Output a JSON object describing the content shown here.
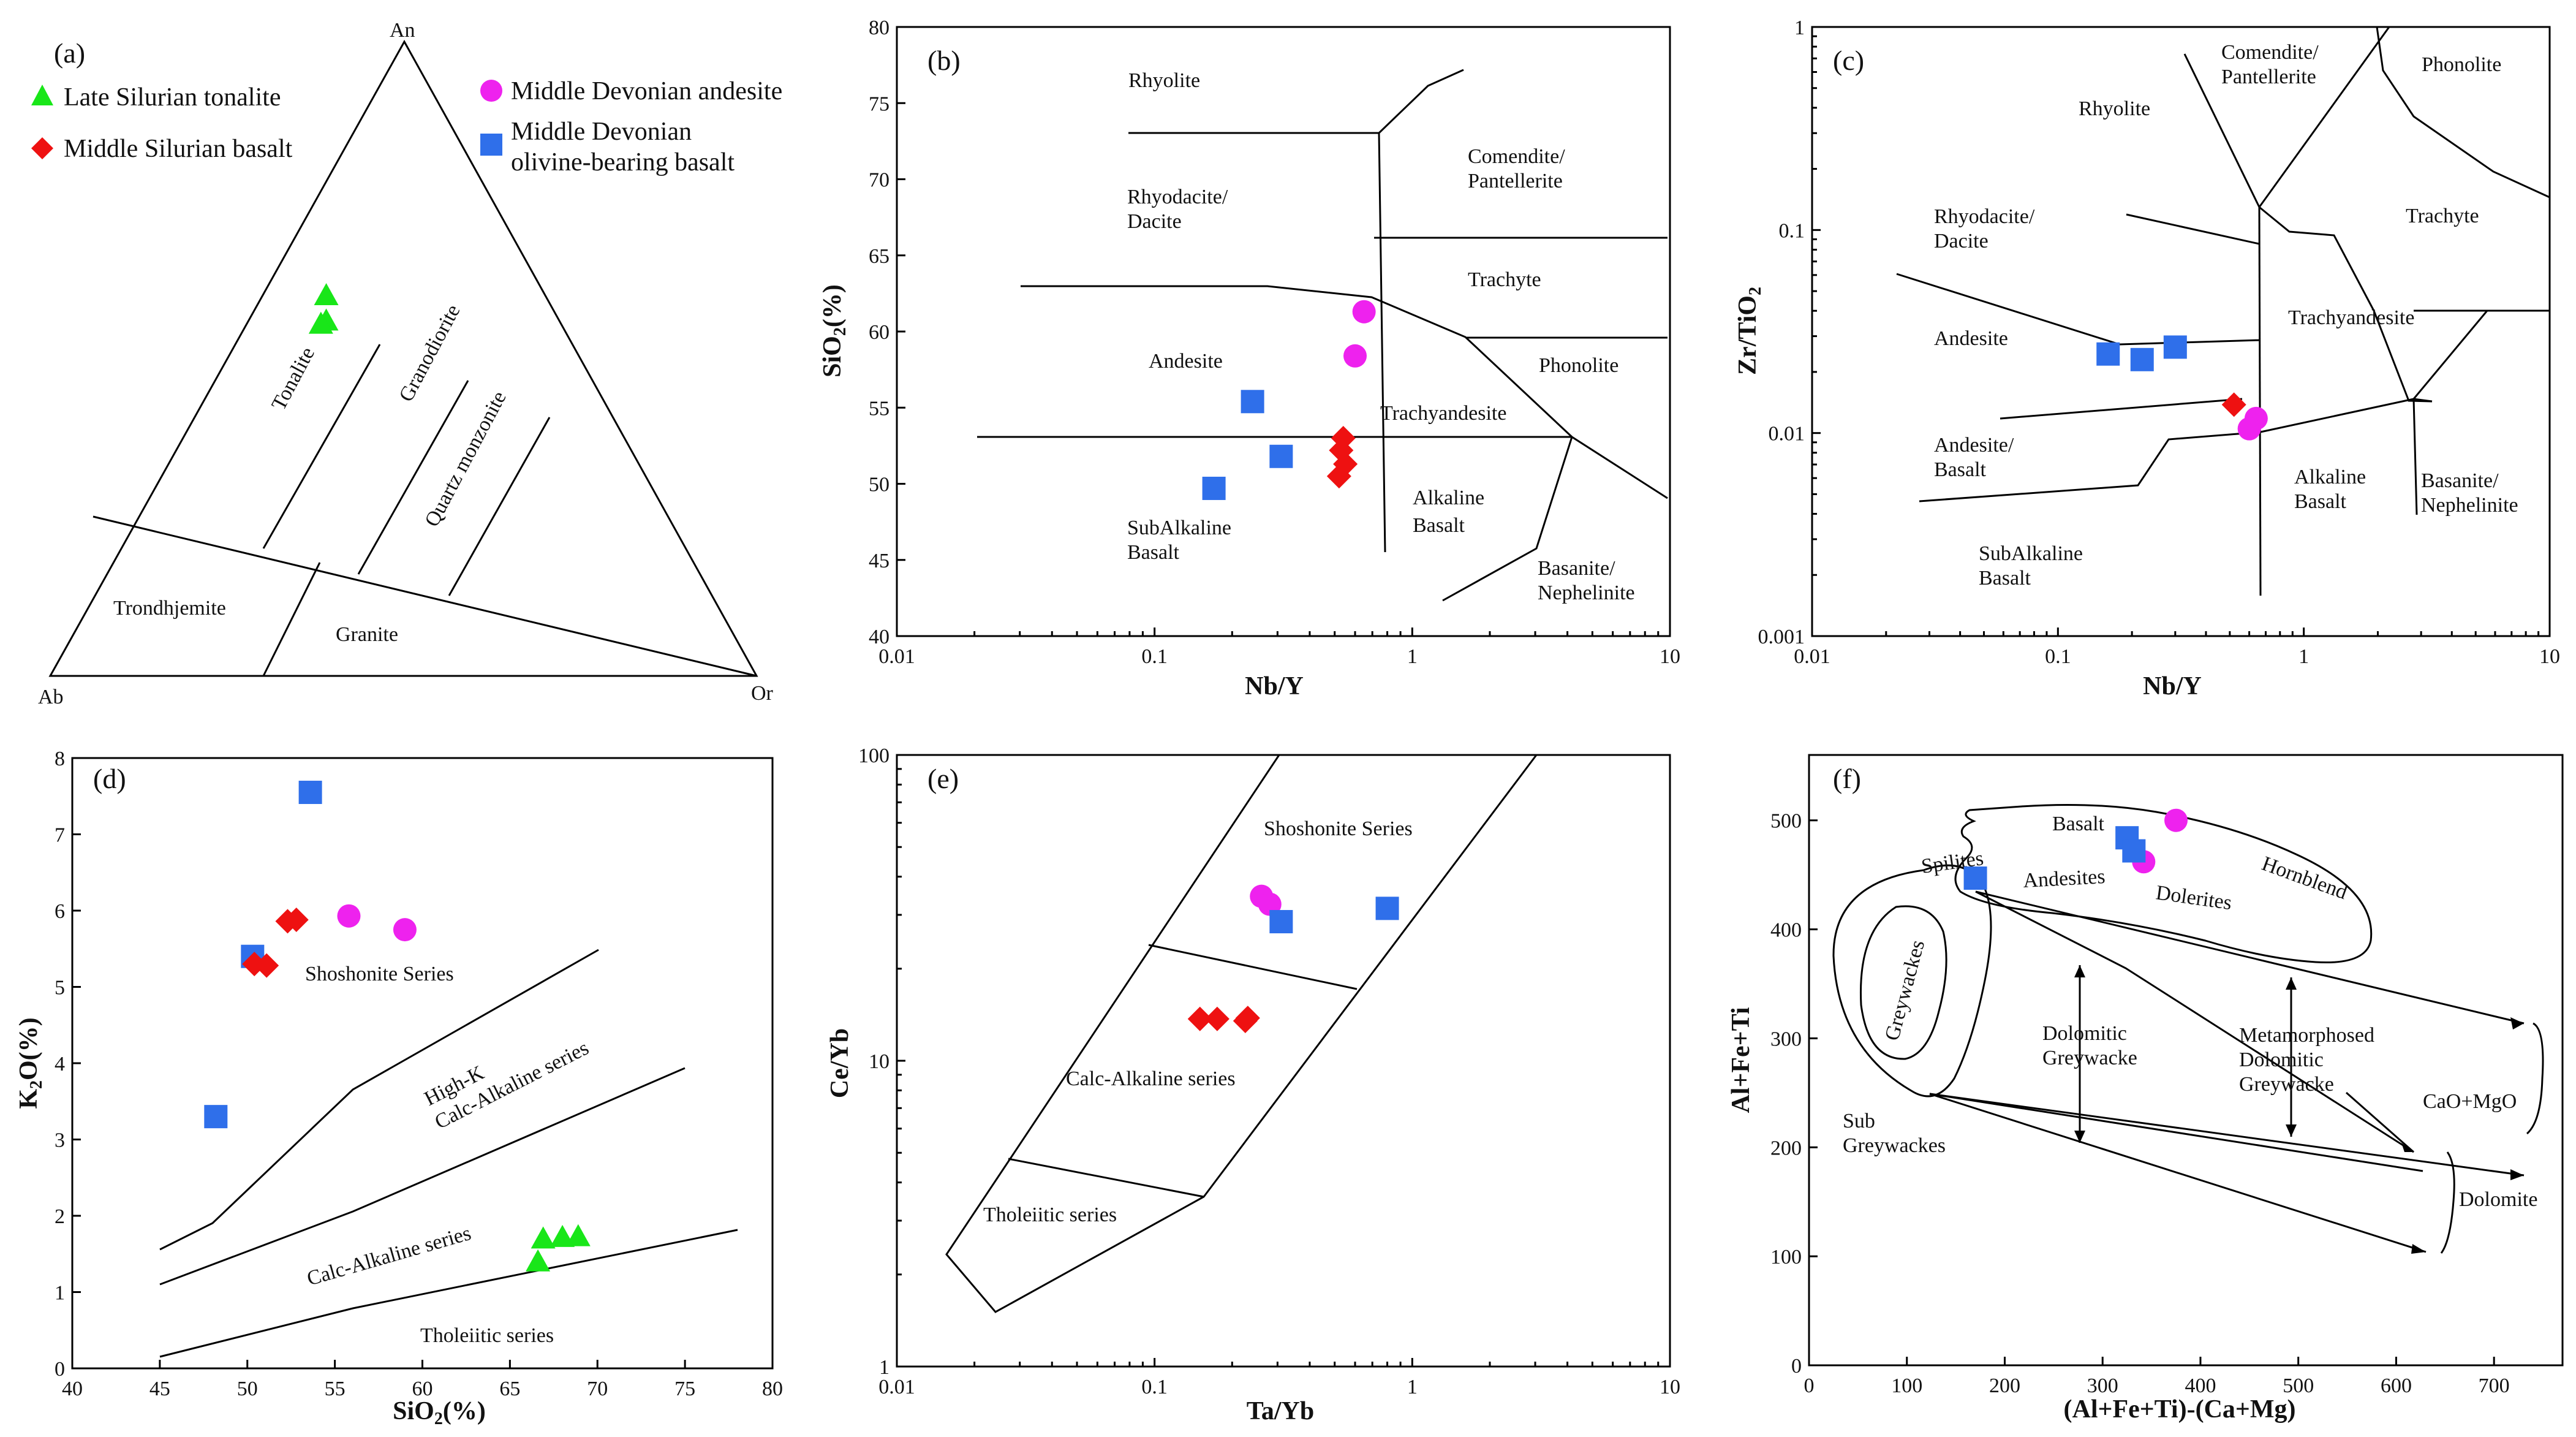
{
  "colors": {
    "late_silurian_tonalite": "#19e619",
    "middle_silurian_basalt": "#ee1111",
    "middle_devonian_andesite": "#ee22ee",
    "middle_devonian_olivine_basalt": "#2f6fea"
  },
  "chart_data": [
    {
      "id": "a",
      "panel_label": "(a)",
      "type": "scatter",
      "subtype": "ternary",
      "vertices": {
        "top": "An",
        "left": "Ab",
        "right": "Or"
      },
      "legend": [
        {
          "key": "late_silurian_tonalite",
          "label": "Late Silurian tonalite",
          "marker": "triangle"
        },
        {
          "key": "middle_silurian_basalt",
          "label": "Middle Silurian basalt",
          "marker": "diamond"
        },
        {
          "key": "middle_devonian_andesite",
          "label": "Middle Devonian andesite",
          "marker": "circle"
        },
        {
          "key": "middle_devonian_olivine_basalt",
          "label_lines": [
            "Middle Devonian",
            "olivine-bearing basalt"
          ],
          "marker": "square"
        }
      ],
      "field_labels": [
        "Tonalite",
        "Granodiorite",
        "Quartz monzonite",
        "Trondhjemite",
        "Granite"
      ],
      "series": [
        {
          "key": "late_silurian_tonalite",
          "points": [
            {
              "An": 0.6,
              "Ab": 0.31,
              "Or": 0.09
            },
            {
              "An": 0.56,
              "Ab": 0.33,
              "Or": 0.11
            },
            {
              "An": 0.555,
              "Ab": 0.34,
              "Or": 0.105
            }
          ]
        }
      ]
    },
    {
      "id": "b",
      "panel_label": "(b)",
      "type": "scatter",
      "xlabel": "Nb/Y",
      "xscale": "log",
      "xlim": [
        0.01,
        10
      ],
      "xticks": [
        "0.01",
        "0.1",
        "1",
        "10"
      ],
      "ylabel": "SiO2(%)",
      "ylim": [
        40,
        80
      ],
      "yticks": [
        "40",
        "45",
        "50",
        "55",
        "60",
        "65",
        "70",
        "75",
        "80"
      ],
      "field_labels": [
        "Rhyolite",
        "Comendite/",
        "Pantellerite",
        "Rhyodacite/",
        "Dacite",
        "Trachyte",
        "Andesite",
        "Phonolite",
        "Trachyandesite",
        "Alkaline",
        "Basalt",
        "SubAlkaline",
        "Basalt",
        "Basanite/",
        "Nephelinite"
      ],
      "series": [
        {
          "key": "middle_devonian_andesite",
          "points": [
            [
              0.65,
              61.3
            ],
            [
              0.6,
              58.4
            ]
          ]
        },
        {
          "key": "middle_devonian_olivine_basalt",
          "points": [
            [
              0.24,
              55.4
            ],
            [
              0.31,
              51.8
            ],
            [
              0.17,
              49.7
            ]
          ]
        },
        {
          "key": "middle_silurian_basalt",
          "points": [
            [
              0.54,
              53.0
            ],
            [
              0.53,
              52.2
            ],
            [
              0.55,
              51.3
            ],
            [
              0.52,
              50.5
            ]
          ]
        }
      ]
    },
    {
      "id": "c",
      "panel_label": "(c)",
      "type": "scatter",
      "xlabel": "Nb/Y",
      "xscale": "log",
      "xlim": [
        0.01,
        10
      ],
      "xticks": [
        "0.01",
        "0.1",
        "1",
        "10"
      ],
      "ylabel": "Zr/TiO2",
      "yscale": "log",
      "ylim": [
        0.001,
        1
      ],
      "yticks": [
        "0.001",
        "0.01",
        "0.1",
        "1"
      ],
      "field_labels": [
        "Comendite/",
        "Pantellerite",
        "Phonolite",
        "Rhyolite",
        "Trachyte",
        "Rhyodacite/",
        "Dacite",
        "Trachyandesite",
        "Andesite",
        "Andesite/",
        "Basalt",
        "Alkaline",
        "Basalt",
        "Basanite/",
        "Nephelinite",
        "SubAlkaline",
        "Basalt"
      ],
      "series": [
        {
          "key": "middle_devonian_olivine_basalt",
          "points": [
            [
              0.16,
              0.0245
            ],
            [
              0.22,
              0.023
            ],
            [
              0.3,
              0.0265
            ]
          ]
        },
        {
          "key": "middle_silurian_basalt",
          "points": [
            [
              0.52,
              0.0138
            ]
          ]
        },
        {
          "key": "middle_devonian_andesite",
          "points": [
            [
              0.64,
              0.0118
            ],
            [
              0.6,
              0.0105
            ]
          ]
        }
      ]
    },
    {
      "id": "d",
      "panel_label": "(d)",
      "type": "scatter",
      "xlabel": "SiO2(%)",
      "xlim": [
        40,
        80
      ],
      "xticks": [
        "40",
        "45",
        "50",
        "55",
        "60",
        "65",
        "70",
        "75",
        "80"
      ],
      "ylabel": "K2O(%)",
      "ylim": [
        0,
        8
      ],
      "yticks": [
        "0",
        "1",
        "2",
        "3",
        "4",
        "5",
        "6",
        "7",
        "8"
      ],
      "field_labels": [
        "Shoshonite Series",
        "High-K",
        "Calc-Alkaline series",
        "Calc-Alkaline series",
        "Tholeiitic series"
      ],
      "series": [
        {
          "key": "middle_devonian_olivine_basalt",
          "points": [
            [
              53.6,
              7.55
            ],
            [
              50.3,
              5.4
            ],
            [
              48.2,
              3.3
            ]
          ]
        },
        {
          "key": "middle_devonian_andesite",
          "points": [
            [
              55.8,
              5.93
            ],
            [
              59.0,
              5.75
            ]
          ]
        },
        {
          "key": "middle_silurian_basalt",
          "points": [
            [
              52.3,
              5.86
            ],
            [
              52.8,
              5.88
            ],
            [
              50.4,
              5.3
            ],
            [
              51.1,
              5.28
            ]
          ]
        },
        {
          "key": "late_silurian_tonalite",
          "points": [
            [
              66.9,
              1.7
            ],
            [
              68.0,
              1.72
            ],
            [
              68.9,
              1.73
            ],
            [
              66.6,
              1.4
            ]
          ]
        }
      ]
    },
    {
      "id": "e",
      "panel_label": "(e)",
      "type": "scatter",
      "xlabel": "Ta/Yb",
      "xscale": "log",
      "xlim": [
        0.01,
        10
      ],
      "xticks": [
        "0.01",
        "0.1",
        "1",
        "10"
      ],
      "ylabel": "Ce/Yb",
      "yscale": "log",
      "ylim": [
        1,
        100
      ],
      "yticks": [
        "1",
        "10",
        "100"
      ],
      "field_labels": [
        "Shoshonite Series",
        "Calc-Alkaline series",
        "Tholeiitic series"
      ],
      "series": [
        {
          "key": "middle_devonian_andesite",
          "points": [
            [
              0.26,
              34.5
            ],
            [
              0.28,
              32.5
            ]
          ]
        },
        {
          "key": "middle_devonian_olivine_basalt",
          "points": [
            [
              0.31,
              28.5
            ],
            [
              0.8,
              31.5
            ]
          ]
        },
        {
          "key": "middle_silurian_basalt",
          "points": [
            [
              0.15,
              13.7
            ],
            [
              0.175,
              13.7
            ],
            [
              0.225,
              13.5
            ],
            [
              0.23,
              13.8
            ]
          ]
        }
      ]
    },
    {
      "id": "f",
      "panel_label": "(f)",
      "type": "scatter",
      "xlabel": "(Al+Fe+Ti)-(Ca+Mg)",
      "xlim": [
        0,
        770
      ],
      "xticks": [
        "0",
        "100",
        "200",
        "300",
        "400",
        "500",
        "600",
        "700"
      ],
      "ylabel": "Al+Fe+Ti",
      "ylim": [
        0,
        560
      ],
      "yticks": [
        "0",
        "100",
        "200",
        "300",
        "400",
        "500"
      ],
      "field_labels": [
        "Basalt",
        "Spilites",
        "Andesites",
        "Dolerites",
        "Hornblend",
        "Greywackes",
        "Dolomitic",
        "Greywacke",
        "Metamorphosed",
        "Dolomitic",
        "Greywacke",
        "CaO+MgO",
        "Sub",
        "Greywackes",
        "Dolomite"
      ],
      "series": [
        {
          "key": "middle_devonian_andesite",
          "points": [
            [
              375,
              500
            ],
            [
              342,
              462
            ]
          ]
        },
        {
          "key": "middle_devonian_olivine_basalt",
          "points": [
            [
              325,
              484
            ],
            [
              332,
              472
            ],
            [
              170,
              447
            ]
          ]
        }
      ]
    }
  ]
}
